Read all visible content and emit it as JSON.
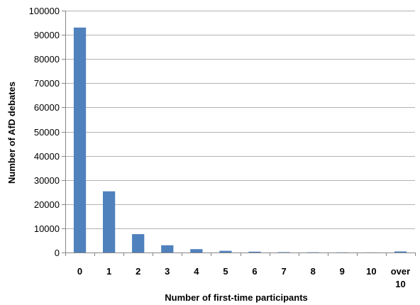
{
  "chart_data": {
    "type": "bar",
    "categories": [
      "0",
      "1",
      "2",
      "3",
      "4",
      "5",
      "6",
      "7",
      "8",
      "9",
      "10",
      "over 10"
    ],
    "category_lines": [
      [
        "0"
      ],
      [
        "1"
      ],
      [
        "2"
      ],
      [
        "3"
      ],
      [
        "4"
      ],
      [
        "5"
      ],
      [
        "6"
      ],
      [
        "7"
      ],
      [
        "8"
      ],
      [
        "9"
      ],
      [
        "10"
      ],
      [
        "over",
        "10"
      ]
    ],
    "values": [
      93000,
      25300,
      7600,
      3000,
      1400,
      700,
      350,
      150,
      100,
      60,
      40,
      450
    ],
    "xlabel": "Number of first-time participants",
    "ylabel": "Number of AfD debates",
    "ylim": [
      0,
      100000
    ],
    "yticks": [
      0,
      10000,
      20000,
      30000,
      40000,
      50000,
      60000,
      70000,
      80000,
      90000,
      100000
    ],
    "grid": true,
    "legend": "none",
    "colors": {
      "bar": "#4F81BD",
      "grid": "#B3B3B3",
      "axis": "#868686"
    }
  }
}
